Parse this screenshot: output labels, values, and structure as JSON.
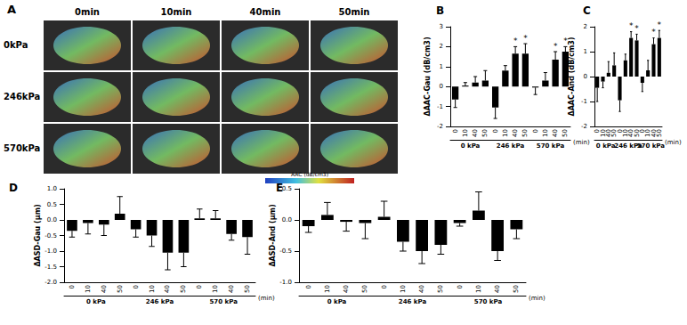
{
  "image_panel": {
    "panel": "A",
    "columns": [
      "0min",
      "10min",
      "40min",
      "50min"
    ],
    "rows": [
      "0kPa",
      "246kPa",
      "570kPa"
    ],
    "colorbar_label": "AAC (dB/cm3)"
  },
  "chart_data": [
    {
      "type": "bar",
      "panel": "B",
      "ylabel": "ΔAAC-Gau (dB/cm3)",
      "xlabel": "(min)",
      "color": "#000000",
      "categories": [
        "0",
        "10",
        "40",
        "50",
        "0",
        "10",
        "40",
        "50",
        "0",
        "10",
        "40",
        "50"
      ],
      "groups": [
        "0 kPa",
        "246 kPa",
        "570 kPa"
      ],
      "values": [
        -0.65,
        0.05,
        0.2,
        0.3,
        -1.05,
        0.8,
        1.65,
        1.65,
        -0.05,
        0.3,
        1.35,
        1.75
      ],
      "errors": [
        0.4,
        0.15,
        0.3,
        0.5,
        0.55,
        0.25,
        0.35,
        0.5,
        0.35,
        0.4,
        0.4,
        0.25
      ],
      "annotations": [
        null,
        null,
        null,
        null,
        null,
        null,
        "*",
        "*",
        null,
        null,
        "*",
        "*"
      ],
      "ylim": [
        -2,
        3
      ],
      "yticks": [
        -2,
        -1,
        0,
        1,
        2,
        3
      ],
      "grid": false
    },
    {
      "type": "bar",
      "panel": "C",
      "ylabel": "ΔAAC-And (dB/cm3)",
      "xlabel": "(min)",
      "color": "#000000",
      "categories": [
        "0",
        "10",
        "40",
        "50",
        "0",
        "10",
        "40",
        "50",
        "0",
        "10",
        "40",
        "50"
      ],
      "groups": [
        "0 kPa",
        "246 kPa",
        "570 kPa"
      ],
      "values": [
        -0.45,
        -0.2,
        0.15,
        0.45,
        -0.95,
        0.65,
        1.55,
        1.45,
        -0.25,
        0.25,
        1.3,
        1.55
      ],
      "errors": [
        0.55,
        0.25,
        0.45,
        0.5,
        0.45,
        0.25,
        0.25,
        0.25,
        0.35,
        0.4,
        0.25,
        0.3
      ],
      "annotations": [
        null,
        null,
        null,
        null,
        null,
        null,
        "*",
        "*",
        null,
        null,
        "*",
        "*"
      ],
      "ylim": [
        -2,
        2
      ],
      "yticks": [
        -2,
        -1,
        0,
        1,
        2
      ],
      "grid": false
    },
    {
      "type": "bar",
      "panel": "D",
      "ylabel": "ΔASD-Gau (µm)",
      "xlabel": "(min)",
      "color": "#000000",
      "categories": [
        "0",
        "10",
        "40",
        "50",
        "0",
        "10",
        "40",
        "50",
        "0",
        "10",
        "40",
        "50"
      ],
      "groups": [
        "0 kPa",
        "246 kPa",
        "570 kPa"
      ],
      "values": [
        -0.35,
        -0.1,
        -0.15,
        0.2,
        -0.3,
        -0.5,
        -1.05,
        -1.05,
        0.05,
        0.05,
        -0.45,
        -0.55
      ],
      "errors": [
        0.2,
        0.35,
        0.35,
        0.55,
        0.25,
        0.35,
        0.55,
        0.45,
        0.3,
        0.25,
        0.2,
        0.55
      ],
      "annotations": [
        null,
        null,
        null,
        null,
        null,
        null,
        null,
        null,
        null,
        null,
        null,
        null
      ],
      "ylim": [
        -2,
        1
      ],
      "yticks": [
        {
          "value": -2,
          "label": "-2.0"
        },
        -1.5,
        {
          "value": -1,
          "label": "-1.0"
        },
        -0.5,
        {
          "value": 0,
          "label": "0.0"
        },
        0.5,
        {
          "value": 1,
          "label": "1.0"
        }
      ],
      "grid": false
    },
    {
      "type": "bar",
      "panel": "E",
      "ylabel": "ΔASD-And (µm)",
      "xlabel": "(min)",
      "color": "#000000",
      "categories": [
        "0",
        "10",
        "40",
        "50",
        "0",
        "10",
        "40",
        "50",
        "0",
        "10",
        "40",
        "50"
      ],
      "groups": [
        "0 kPa",
        "246 kPa",
        "570 kPa"
      ],
      "values": [
        -0.1,
        0.08,
        -0.03,
        -0.05,
        0.05,
        -0.35,
        -0.5,
        -0.4,
        -0.05,
        0.15,
        -0.5,
        -0.15
      ],
      "errors": [
        0.1,
        0.2,
        0.15,
        0.25,
        0.25,
        0.15,
        0.2,
        0.15,
        0.05,
        0.3,
        0.15,
        0.15
      ],
      "annotations": [
        null,
        null,
        null,
        null,
        null,
        null,
        null,
        null,
        null,
        null,
        null,
        null
      ],
      "ylim": [
        -1,
        0.5
      ],
      "yticks": [
        {
          "value": -1,
          "label": "-1.0"
        },
        -0.5,
        {
          "value": 0,
          "label": "0.0"
        },
        0.5
      ],
      "grid": false
    }
  ]
}
